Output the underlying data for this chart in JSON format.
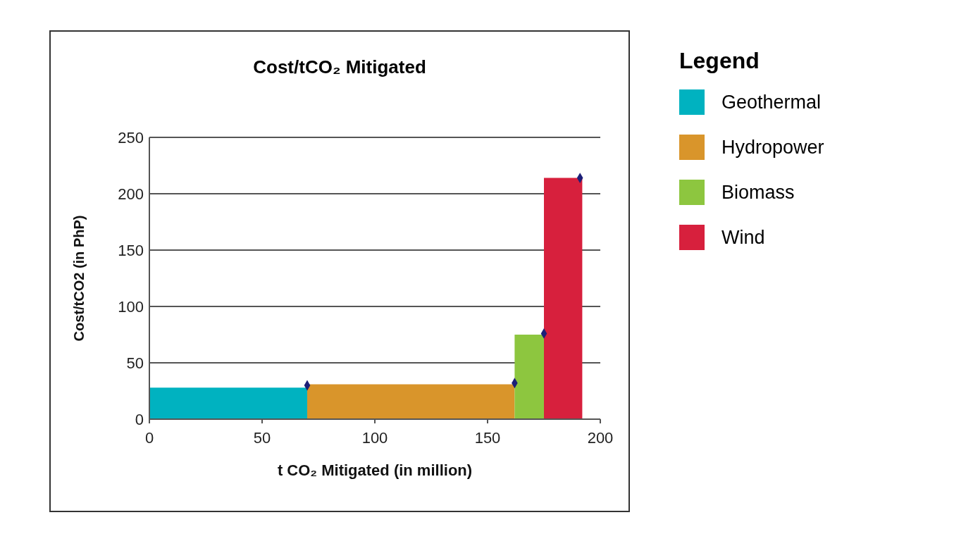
{
  "chart_data": {
    "type": "area",
    "title": "Cost/tCO₂ Mitigated",
    "xlabel": "t CO₂ Mitigated (in million)",
    "ylabel": "Cost/tCO2 (in PhP)",
    "legend_title": "Legend",
    "series": [
      {
        "name": "Geothermal",
        "color": "#00b2c0",
        "x": [
          0,
          70
        ],
        "values": [
          28,
          28
        ]
      },
      {
        "name": "Hydropower",
        "color": "#d9952b",
        "x": [
          70,
          162
        ],
        "values": [
          31,
          31
        ]
      },
      {
        "name": "Biomass",
        "color": "#8dc63f",
        "x": [
          162,
          175
        ],
        "values": [
          75,
          75
        ]
      },
      {
        "name": "Wind",
        "color": "#d7203d",
        "x": [
          175,
          192
        ],
        "values": [
          214,
          214
        ]
      },
      {
        "type": "scatter",
        "color": "#1c1f78",
        "marker": "diamond",
        "x": [
          70,
          162,
          175,
          191
        ],
        "values": [
          30,
          32,
          76,
          214
        ]
      }
    ],
    "xlim": [
      0,
      200
    ],
    "xticks": [
      0,
      50,
      100,
      150,
      200
    ],
    "ylim": [
      0,
      250
    ],
    "yticks": [
      0,
      50,
      100,
      150,
      200,
      250
    ],
    "grid": "y",
    "legend": "right"
  }
}
